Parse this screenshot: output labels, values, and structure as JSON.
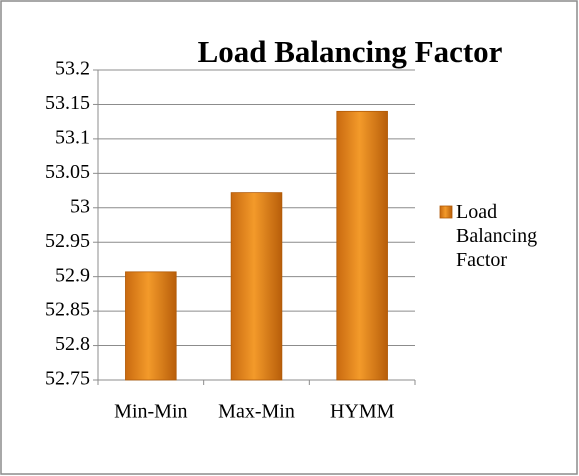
{
  "chart_data": {
    "type": "bar",
    "title": "Load Balancing Factor",
    "categories": [
      "Min-Min",
      "Max-Min",
      "HYMM"
    ],
    "series": [
      {
        "name": "Load Balancing Factor",
        "color": "#f39a2a",
        "values": [
          52.907,
          53.022,
          53.14
        ]
      }
    ],
    "ylim": [
      52.75,
      53.2
    ],
    "yticks": [
      52.75,
      52.8,
      52.85,
      52.9,
      52.95,
      53,
      53.05,
      53.1,
      53.15,
      53.2
    ],
    "grid": true,
    "legend": "right"
  }
}
